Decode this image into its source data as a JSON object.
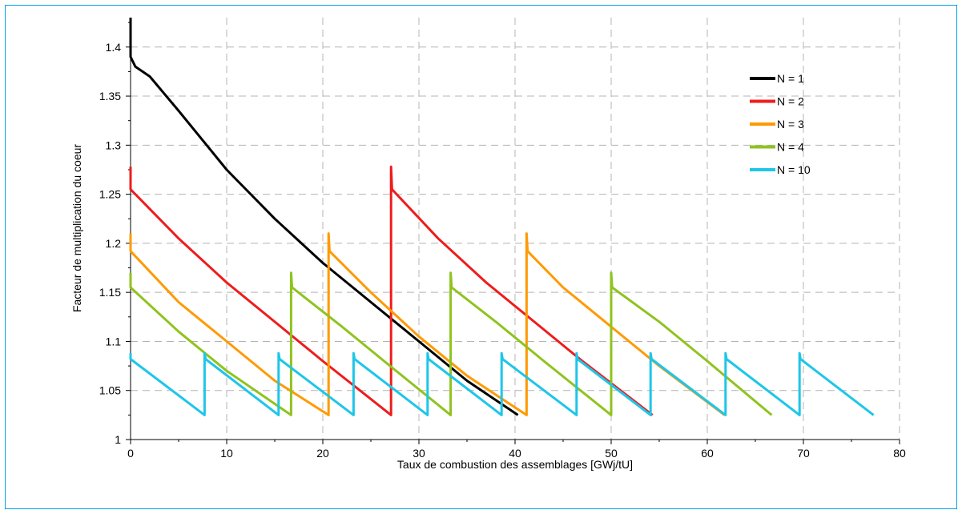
{
  "chart_data": {
    "type": "line",
    "title": "",
    "xlabel": "Taux de combustion des assemblages [GWj/tU]",
    "ylabel": "Facteur de multiplication du coeur",
    "xlim": [
      0,
      80
    ],
    "ylim": [
      1,
      1.43
    ],
    "x_ticks": [
      "0",
      "10",
      "20",
      "30",
      "40",
      "50",
      "60",
      "70",
      "80"
    ],
    "y_ticks": [
      "1",
      "1.05",
      "1.1",
      "1.15",
      "1.2",
      "1.25",
      "1.3",
      "1.35",
      "1.4"
    ],
    "x_tick_values": [
      0,
      10,
      20,
      30,
      40,
      50,
      60,
      70,
      80
    ],
    "y_tick_values": [
      1,
      1.05,
      1.1,
      1.15,
      1.2,
      1.25,
      1.3,
      1.35,
      1.4
    ],
    "grid": true,
    "legend_position": "top-right",
    "series": [
      {
        "name": "N = 1",
        "color": "#000000",
        "points": [
          [
            0,
            1.43
          ],
          [
            0,
            1.39
          ],
          [
            0.5,
            1.38
          ],
          [
            2,
            1.37
          ],
          [
            5,
            1.335
          ],
          [
            10,
            1.275
          ],
          [
            15,
            1.225
          ],
          [
            20,
            1.18
          ],
          [
            25,
            1.14
          ],
          [
            30,
            1.1
          ],
          [
            35,
            1.06
          ],
          [
            40.3,
            1.025
          ]
        ]
      },
      {
        "name": "N = 2",
        "color": "#ee1c1c",
        "points": [
          [
            0,
            1.278
          ],
          [
            0,
            1.255
          ],
          [
            5,
            1.205
          ],
          [
            10,
            1.16
          ],
          [
            15,
            1.12
          ],
          [
            20,
            1.08
          ],
          [
            27.1,
            1.025
          ],
          [
            27.1,
            1.278
          ],
          [
            27.2,
            1.255
          ],
          [
            32,
            1.205
          ],
          [
            37,
            1.16
          ],
          [
            42,
            1.12
          ],
          [
            47,
            1.08
          ],
          [
            54.3,
            1.025
          ]
        ]
      },
      {
        "name": "N = 3",
        "color": "#ff9a00",
        "points": [
          [
            0,
            1.21
          ],
          [
            0,
            1.192
          ],
          [
            5,
            1.14
          ],
          [
            10,
            1.1
          ],
          [
            15,
            1.06
          ],
          [
            20.6,
            1.025
          ],
          [
            20.6,
            1.21
          ],
          [
            20.7,
            1.192
          ],
          [
            25,
            1.15
          ],
          [
            30,
            1.105
          ],
          [
            35,
            1.065
          ],
          [
            41.2,
            1.025
          ],
          [
            41.2,
            1.21
          ],
          [
            41.3,
            1.192
          ],
          [
            45,
            1.155
          ],
          [
            50,
            1.115
          ],
          [
            55,
            1.075
          ],
          [
            61.8,
            1.025
          ]
        ]
      },
      {
        "name": "N = 4",
        "color": "#8fc31f",
        "points": [
          [
            0,
            1.17
          ],
          [
            0,
            1.155
          ],
          [
            5,
            1.11
          ],
          [
            10,
            1.07
          ],
          [
            16.7,
            1.025
          ],
          [
            16.7,
            1.17
          ],
          [
            16.8,
            1.155
          ],
          [
            22,
            1.115
          ],
          [
            27,
            1.075
          ],
          [
            33.3,
            1.025
          ],
          [
            33.3,
            1.17
          ],
          [
            33.4,
            1.155
          ],
          [
            38,
            1.12
          ],
          [
            43,
            1.08
          ],
          [
            50,
            1.025
          ],
          [
            50,
            1.17
          ],
          [
            50.1,
            1.155
          ],
          [
            55,
            1.12
          ],
          [
            60,
            1.08
          ],
          [
            66.7,
            1.025
          ]
        ]
      },
      {
        "name": "N = 10",
        "color": "#1ec6e8",
        "points": [
          [
            0,
            1.088
          ],
          [
            0,
            1.082
          ],
          [
            7.7,
            1.025
          ],
          [
            7.7,
            1.088
          ],
          [
            7.8,
            1.082
          ],
          [
            15.4,
            1.025
          ],
          [
            15.4,
            1.088
          ],
          [
            15.5,
            1.082
          ],
          [
            23.2,
            1.025
          ],
          [
            23.2,
            1.088
          ],
          [
            23.3,
            1.082
          ],
          [
            30.9,
            1.025
          ],
          [
            30.9,
            1.088
          ],
          [
            31,
            1.082
          ],
          [
            38.6,
            1.025
          ],
          [
            38.6,
            1.088
          ],
          [
            38.7,
            1.082
          ],
          [
            46.4,
            1.025
          ],
          [
            46.4,
            1.088
          ],
          [
            46.5,
            1.082
          ],
          [
            54.1,
            1.025
          ],
          [
            54.1,
            1.088
          ],
          [
            54.2,
            1.082
          ],
          [
            61.9,
            1.025
          ],
          [
            61.9,
            1.088
          ],
          [
            62,
            1.082
          ],
          [
            69.6,
            1.025
          ],
          [
            69.6,
            1.088
          ],
          [
            69.7,
            1.082
          ],
          [
            77.3,
            1.025
          ]
        ]
      }
    ]
  }
}
